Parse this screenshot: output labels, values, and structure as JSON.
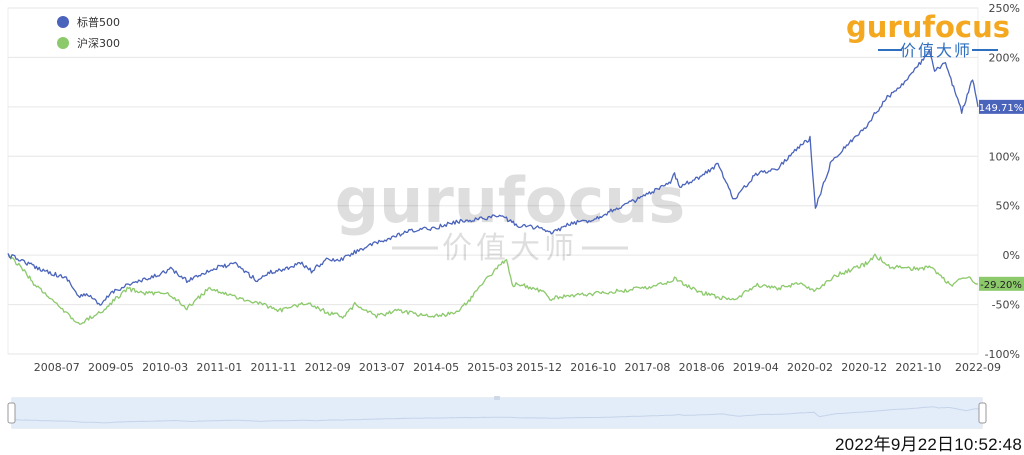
{
  "brand": {
    "logo_word": "gurufocus",
    "logo_tagline": "价值大师",
    "watermark_word": "gurufocus",
    "watermark_tagline": "价值大师",
    "logo_color": "#f3a81f",
    "tagline_color": "#2f6fc0"
  },
  "timestamp": "2022年9月22日10:52:48",
  "colors": {
    "sp500": "#4a63bb",
    "csi300": "#8bc96a",
    "grid": "#e6e6e6",
    "slider_fill": "#e3ecf9"
  },
  "chart_data": {
    "type": "line",
    "title": "",
    "xlabel": "",
    "ylabel": "",
    "x_ticks": [
      "2008-07",
      "2009-05",
      "2010-03",
      "2011-01",
      "2011-11",
      "2012-09",
      "2013-07",
      "2014-05",
      "2015-03",
      "2015-12",
      "2016-10",
      "2017-08",
      "2018-06",
      "2019-04",
      "2020-02",
      "2020-12",
      "2021-10",
      "2022-09"
    ],
    "y_ticks": [
      "250%",
      "200%",
      "150%",
      "100%",
      "50%",
      "0%",
      "-50%",
      "-100%"
    ],
    "y_tick_values": [
      250,
      200,
      150,
      100,
      50,
      0,
      -50,
      -100
    ],
    "ylim": [
      -100,
      250
    ],
    "xlim": [
      "2007-10",
      "2022-09"
    ],
    "legend_position": "top-left",
    "grid": true,
    "series": [
      {
        "name": "标普500",
        "end_label": "149.71%",
        "points": [
          [
            "2007-10",
            0
          ],
          [
            "2007-12",
            -4
          ],
          [
            "2008-03",
            -12
          ],
          [
            "2008-06",
            -18
          ],
          [
            "2008-09",
            -24
          ],
          [
            "2008-11",
            -42
          ],
          [
            "2009-01",
            -40
          ],
          [
            "2009-03",
            -52
          ],
          [
            "2009-05",
            -38
          ],
          [
            "2009-08",
            -30
          ],
          [
            "2009-12",
            -24
          ],
          [
            "2010-04",
            -14
          ],
          [
            "2010-07",
            -26
          ],
          [
            "2010-10",
            -18
          ],
          [
            "2011-01",
            -12
          ],
          [
            "2011-04",
            -9
          ],
          [
            "2011-08",
            -26
          ],
          [
            "2011-10",
            -18
          ],
          [
            "2012-01",
            -14
          ],
          [
            "2012-04",
            -8
          ],
          [
            "2012-06",
            -16
          ],
          [
            "2012-09",
            -4
          ],
          [
            "2012-11",
            -6
          ],
          [
            "2013-03",
            6
          ],
          [
            "2013-07",
            14
          ],
          [
            "2013-12",
            24
          ],
          [
            "2014-05",
            28
          ],
          [
            "2014-09",
            34
          ],
          [
            "2014-12",
            36
          ],
          [
            "2015-05",
            40
          ],
          [
            "2015-08",
            30
          ],
          [
            "2015-12",
            28
          ],
          [
            "2016-02",
            22
          ],
          [
            "2016-06",
            32
          ],
          [
            "2016-10",
            36
          ],
          [
            "2017-01",
            44
          ],
          [
            "2017-06",
            56
          ],
          [
            "2017-12",
            72
          ],
          [
            "2018-01",
            82
          ],
          [
            "2018-02",
            70
          ],
          [
            "2018-06",
            80
          ],
          [
            "2018-09",
            92
          ],
          [
            "2018-12",
            56
          ],
          [
            "2019-04",
            82
          ],
          [
            "2019-08",
            88
          ],
          [
            "2019-12",
            110
          ],
          [
            "2020-02",
            118
          ],
          [
            "2020-03",
            48
          ],
          [
            "2020-06",
            96
          ],
          [
            "2020-09",
            112
          ],
          [
            "2020-12",
            128
          ],
          [
            "2021-04",
            158
          ],
          [
            "2021-08",
            178
          ],
          [
            "2021-12",
            206
          ],
          [
            "2022-01",
            186
          ],
          [
            "2022-03",
            194
          ],
          [
            "2022-06",
            145
          ],
          [
            "2022-08",
            178
          ],
          [
            "2022-09",
            150
          ]
        ]
      },
      {
        "name": "沪深300",
        "end_label": "-29.20%",
        "points": [
          [
            "2007-10",
            0
          ],
          [
            "2007-12",
            -10
          ],
          [
            "2008-03",
            -30
          ],
          [
            "2008-07",
            -50
          ],
          [
            "2008-11",
            -70
          ],
          [
            "2009-03",
            -58
          ],
          [
            "2009-08",
            -34
          ],
          [
            "2009-11",
            -38
          ],
          [
            "2010-04",
            -40
          ],
          [
            "2010-07",
            -54
          ],
          [
            "2010-11",
            -34
          ],
          [
            "2011-04",
            -42
          ],
          [
            "2011-09",
            -50
          ],
          [
            "2011-12",
            -56
          ],
          [
            "2012-05",
            -48
          ],
          [
            "2012-09",
            -58
          ],
          [
            "2012-12",
            -62
          ],
          [
            "2013-02",
            -50
          ],
          [
            "2013-06",
            -62
          ],
          [
            "2013-10",
            -56
          ],
          [
            "2014-03",
            -62
          ],
          [
            "2014-07",
            -60
          ],
          [
            "2014-09",
            -58
          ],
          [
            "2014-12",
            -40
          ],
          [
            "2015-03",
            -20
          ],
          [
            "2015-06",
            -4
          ],
          [
            "2015-07",
            -30
          ],
          [
            "2015-09",
            -30
          ],
          [
            "2016-01",
            -38
          ],
          [
            "2016-02",
            -44
          ],
          [
            "2016-08",
            -40
          ],
          [
            "2016-12",
            -38
          ],
          [
            "2017-06",
            -34
          ],
          [
            "2017-12",
            -28
          ],
          [
            "2018-01",
            -24
          ],
          [
            "2018-06",
            -38
          ],
          [
            "2018-12",
            -46
          ],
          [
            "2019-04",
            -30
          ],
          [
            "2019-08",
            -34
          ],
          [
            "2019-12",
            -28
          ],
          [
            "2020-03",
            -36
          ],
          [
            "2020-07",
            -20
          ],
          [
            "2020-12",
            -10
          ],
          [
            "2021-02",
            0
          ],
          [
            "2021-05",
            -12
          ],
          [
            "2021-10",
            -14
          ],
          [
            "2021-12",
            -12
          ],
          [
            "2022-04",
            -30
          ],
          [
            "2022-07",
            -22
          ],
          [
            "2022-09",
            -29
          ]
        ]
      }
    ]
  }
}
